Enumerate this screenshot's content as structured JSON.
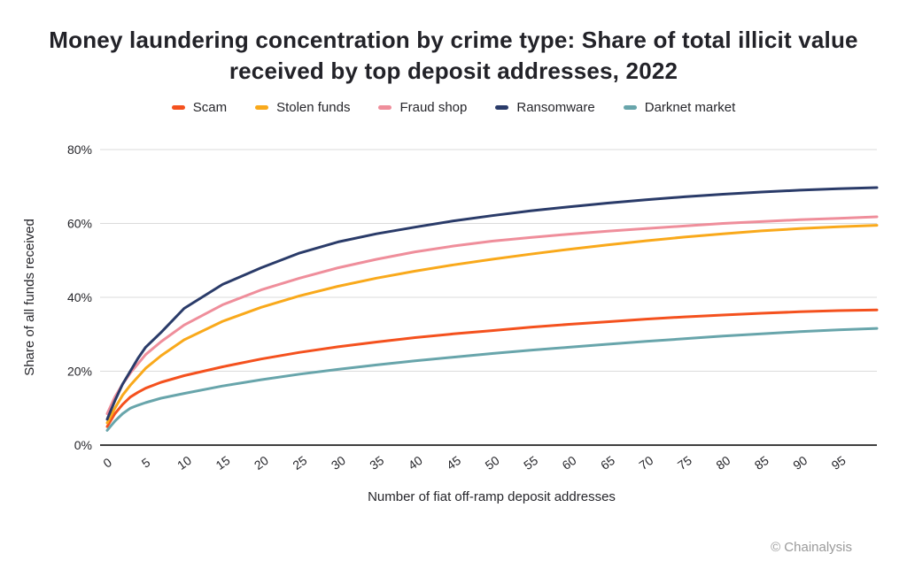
{
  "title": {
    "line1": "Money laundering concentration by crime type: Share of total illicit value",
    "line2": "received by top deposit addresses, 2022"
  },
  "footer": {
    "credit": "© Chainalysis"
  },
  "chart_data": {
    "type": "line",
    "title": "Money laundering concentration by crime type: Share of total illicit value received by top deposit addresses, 2022",
    "xlabel": "Number of fiat off-ramp deposit addresses",
    "ylabel": "Share of all funds received",
    "xlim": [
      0,
      100
    ],
    "ylim": [
      0,
      80
    ],
    "grid": "horizontal",
    "legend_position": "top-center",
    "x_ticks": [
      0,
      5,
      10,
      15,
      20,
      25,
      30,
      35,
      40,
      45,
      50,
      55,
      60,
      65,
      70,
      75,
      80,
      85,
      90,
      95
    ],
    "y_ticks": [
      0,
      20,
      40,
      60,
      80
    ],
    "y_tick_suffix": "%",
    "colors": {
      "grid": "#dbdbdb",
      "axis": "#404040",
      "text": "#26262b",
      "credit": "#9a9a9a"
    },
    "x": [
      0,
      1,
      2,
      3,
      4,
      5,
      7,
      10,
      15,
      20,
      25,
      30,
      35,
      40,
      45,
      50,
      55,
      60,
      65,
      70,
      75,
      80,
      85,
      90,
      95,
      100
    ],
    "series": [
      {
        "name": "Scam",
        "color": "#F4511E",
        "values": [
          5,
          8.5,
          11,
          13,
          14.3,
          15.4,
          17,
          18.8,
          21.2,
          23.3,
          25.1,
          26.6,
          27.9,
          29.1,
          30.1,
          31,
          31.9,
          32.7,
          33.4,
          34.1,
          34.7,
          35.2,
          35.7,
          36.1,
          36.4,
          36.6
        ]
      },
      {
        "name": "Stolen funds",
        "color": "#F9A91B",
        "values": [
          6,
          10,
          13.5,
          16.2,
          18.5,
          20.8,
          24.2,
          28.5,
          33.5,
          37.3,
          40.4,
          43,
          45.2,
          47.1,
          48.8,
          50.3,
          51.7,
          53,
          54.2,
          55.3,
          56.3,
          57.2,
          58,
          58.6,
          59.1,
          59.5
        ]
      },
      {
        "name": "Fraud shop",
        "color": "#EF8E9B",
        "values": [
          8.5,
          13,
          16.5,
          19.5,
          22,
          24.5,
          28,
          32.5,
          38,
          42,
          45.2,
          48,
          50.3,
          52.3,
          53.9,
          55.2,
          56.2,
          57.1,
          57.9,
          58.6,
          59.3,
          60,
          60.5,
          61,
          61.4,
          61.8
        ]
      },
      {
        "name": "Ransomware",
        "color": "#2A3B69",
        "values": [
          7,
          12,
          16.5,
          20,
          23.5,
          26.5,
          30.5,
          37,
          43.5,
          48,
          52,
          55,
          57.2,
          59,
          60.7,
          62.1,
          63.4,
          64.5,
          65.5,
          66.4,
          67.2,
          67.9,
          68.5,
          69,
          69.4,
          69.7
        ]
      },
      {
        "name": "Darknet market",
        "color": "#68A5AB",
        "values": [
          4,
          6.5,
          8.5,
          10,
          10.8,
          11.5,
          12.7,
          14,
          16,
          17.7,
          19.2,
          20.5,
          21.7,
          22.8,
          23.8,
          24.8,
          25.7,
          26.5,
          27.3,
          28.1,
          28.8,
          29.5,
          30.1,
          30.7,
          31.2,
          31.6
        ]
      }
    ]
  }
}
